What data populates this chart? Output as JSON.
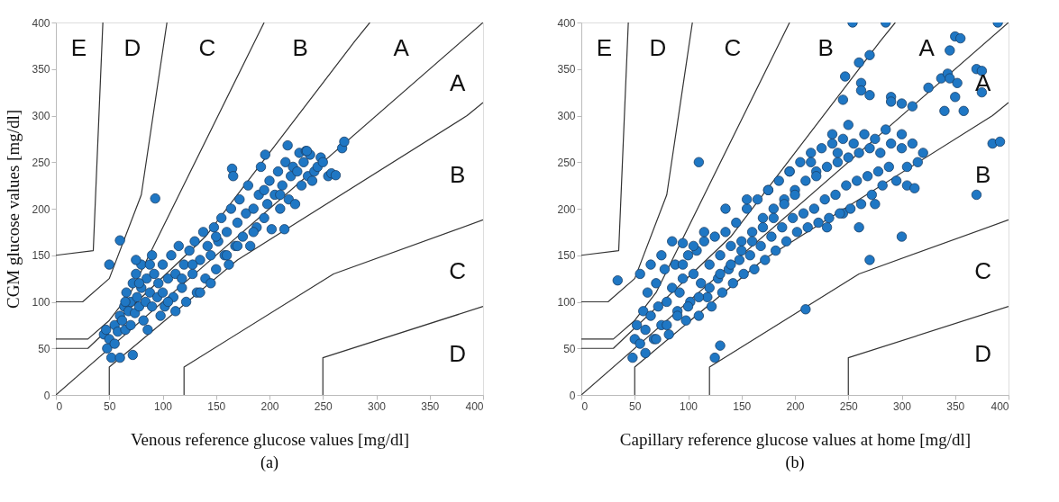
{
  "chart_data": [
    {
      "type": "scatter",
      "xlabel": "Venous reference glucose values [mg/dl]",
      "ylabel": "CGM glucose values [mg/dl]",
      "xlim": [
        0,
        400
      ],
      "ylim": [
        0,
        400
      ],
      "xticks": [
        0,
        50,
        100,
        150,
        200,
        250,
        300,
        350,
        400
      ],
      "yticks": [
        0,
        50,
        100,
        150,
        200,
        250,
        300,
        350,
        400
      ],
      "grid": false,
      "annotations": [
        "E",
        "D",
        "C",
        "B",
        "A",
        "A",
        "B",
        "C",
        "D",
        "(a)"
      ],
      "series": [
        {
          "type": "line",
          "color": "#333333",
          "x": [
            0,
            400
          ],
          "values": [
            0,
            400
          ]
        },
        {
          "type": "line",
          "color": "#333333",
          "x": [
            0,
            30,
            140,
            280,
            294
          ],
          "values": [
            50,
            50,
            170,
            380,
            400
          ]
        },
        {
          "type": "line",
          "color": "#333333",
          "x": [
            50,
            50,
            170,
            385,
            400
          ],
          "values": [
            0,
            30,
            145,
            300,
            314
          ]
        },
        {
          "type": "line",
          "color": "#333333",
          "x": [
            0,
            30,
            50,
            70,
            195
          ],
          "values": [
            60,
            60,
            80,
            110,
            400
          ]
        },
        {
          "type": "line",
          "color": "#333333",
          "x": [
            120,
            120,
            260,
            400
          ],
          "values": [
            0,
            30,
            130,
            188
          ]
        },
        {
          "type": "line",
          "color": "#333333",
          "x": [
            0,
            25,
            50,
            80,
            104
          ],
          "values": [
            100,
            100,
            125,
            215,
            400
          ]
        },
        {
          "type": "line",
          "color": "#333333",
          "x": [
            250,
            250,
            400
          ],
          "values": [
            0,
            40,
            95
          ]
        },
        {
          "type": "line",
          "color": "#333333",
          "x": [
            0,
            35,
            44
          ],
          "values": [
            150,
            155,
            400
          ]
        },
        {
          "color": "#1f77c4",
          "marker": "circle",
          "x": [
            45,
            47,
            48,
            50,
            52,
            55,
            58,
            60,
            60,
            62,
            64,
            65,
            66,
            68,
            70,
            70,
            72,
            72,
            74,
            75,
            76,
            78,
            80,
            80,
            82,
            84,
            85,
            86,
            88,
            90,
            90,
            92,
            93,
            95,
            96,
            98,
            100,
            100,
            102,
            105,
            108,
            110,
            112,
            115,
            118,
            120,
            122,
            125,
            128,
            130,
            132,
            135,
            138,
            140,
            142,
            145,
            148,
            150,
            152,
            155,
            158,
            160,
            162,
            164,
            165,
            166,
            168,
            170,
            172,
            175,
            178,
            180,
            182,
            185,
            188,
            190,
            192,
            195,
            196,
            198,
            200,
            202,
            205,
            208,
            210,
            212,
            214,
            215,
            217,
            218,
            220,
            222,
            224,
            226,
            228,
            230,
            232,
            234,
            236,
            238,
            240,
            242,
            245,
            248,
            250,
            255,
            258,
            262,
            268,
            270,
            50,
            60,
            75,
            150,
            235,
            105,
            112,
            135,
            160,
            185,
            55,
            65,
            78,
            88,
            118,
            128,
            145,
            170,
            195,
            210
          ],
          "values": [
            65,
            70,
            50,
            60,
            40,
            75,
            68,
            40,
            85,
            80,
            95,
            70,
            110,
            90,
            100,
            75,
            43,
            120,
            88,
            130,
            105,
            95,
            140,
            115,
            80,
            100,
            125,
            70,
            110,
            95,
            150,
            130,
            211,
            105,
            120,
            85,
            110,
            140,
            95,
            125,
            150,
            105,
            130,
            160,
            115,
            140,
            100,
            155,
            130,
            165,
            110,
            145,
            175,
            125,
            160,
            150,
            180,
            135,
            165,
            190,
            150,
            175,
            140,
            200,
            243,
            235,
            160,
            185,
            210,
            170,
            195,
            225,
            160,
            200,
            180,
            215,
            245,
            190,
            258,
            205,
            230,
            178,
            215,
            240,
            200,
            225,
            178,
            250,
            268,
            210,
            235,
            245,
            205,
            240,
            260,
            225,
            250,
            262,
            235,
            258,
            230,
            240,
            245,
            255,
            250,
            235,
            238,
            236,
            265,
            272,
            140,
            166,
            145,
            170,
            262,
            100,
            90,
            110,
            150,
            175,
            55,
            100,
            120,
            140,
            125,
            140,
            120,
            160,
            220,
            215
          ]
        }
      ]
    },
    {
      "type": "scatter",
      "xlabel": "Capillary reference glucose values at home [mg/dl]",
      "xlim": [
        0,
        400
      ],
      "ylim": [
        0,
        400
      ],
      "xticks": [
        0,
        50,
        100,
        150,
        200,
        250,
        300,
        350,
        400
      ],
      "yticks": [
        0,
        50,
        100,
        150,
        200,
        250,
        300,
        350,
        400
      ],
      "grid": false,
      "annotations": [
        "E",
        "D",
        "C",
        "B",
        "A",
        "A",
        "B",
        "C",
        "D",
        "(b)"
      ],
      "series": [
        {
          "type": "line",
          "color": "#333333",
          "x": [
            0,
            400
          ],
          "values": [
            0,
            400
          ]
        },
        {
          "type": "line",
          "color": "#333333",
          "x": [
            0,
            30,
            140,
            280,
            294
          ],
          "values": [
            50,
            50,
            170,
            380,
            400
          ]
        },
        {
          "type": "line",
          "color": "#333333",
          "x": [
            50,
            50,
            170,
            385,
            400
          ],
          "values": [
            0,
            30,
            145,
            300,
            314
          ]
        },
        {
          "type": "line",
          "color": "#333333",
          "x": [
            0,
            30,
            50,
            70,
            195
          ],
          "values": [
            60,
            60,
            80,
            110,
            400
          ]
        },
        {
          "type": "line",
          "color": "#333333",
          "x": [
            120,
            120,
            260,
            400
          ],
          "values": [
            0,
            30,
            130,
            188
          ]
        },
        {
          "type": "line",
          "color": "#333333",
          "x": [
            0,
            25,
            50,
            80,
            104
          ],
          "values": [
            100,
            100,
            125,
            215,
            400
          ]
        },
        {
          "type": "line",
          "color": "#333333",
          "x": [
            250,
            250,
            400
          ],
          "values": [
            0,
            40,
            95
          ]
        },
        {
          "type": "line",
          "color": "#333333",
          "x": [
            0,
            35,
            44
          ],
          "values": [
            150,
            155,
            400
          ]
        },
        {
          "color": "#1f77c4",
          "marker": "circle",
          "x": [
            34,
            110,
            254,
            285,
            390,
            350,
            355,
            345,
            260,
            270,
            247,
            262,
            245,
            262,
            270,
            290,
            290,
            300,
            310,
            325,
            337,
            343,
            345,
            350,
            358,
            370,
            375,
            352,
            375,
            385,
            392,
            370,
            340,
            300,
            210,
            245,
            260,
            275,
            270,
            230,
            300,
            305,
            312,
            130,
            125,
            95,
            48,
            50,
            52,
            55,
            58,
            60,
            62,
            65,
            68,
            70,
            72,
            75,
            78,
            80,
            82,
            85,
            88,
            90,
            92,
            95,
            98,
            100,
            102,
            105,
            108,
            110,
            112,
            115,
            118,
            120,
            122,
            125,
            128,
            130,
            132,
            135,
            138,
            140,
            142,
            145,
            148,
            150,
            152,
            155,
            158,
            160,
            162,
            165,
            168,
            170,
            172,
            175,
            178,
            180,
            182,
            185,
            188,
            190,
            192,
            195,
            198,
            200,
            202,
            205,
            208,
            210,
            212,
            215,
            218,
            220,
            222,
            225,
            228,
            230,
            232,
            235,
            238,
            240,
            242,
            245,
            248,
            250,
            252,
            255,
            258,
            260,
            262,
            265,
            268,
            270,
            272,
            275,
            278,
            280,
            282,
            285,
            288,
            290,
            295,
            300,
            305,
            310,
            315,
            320,
            60,
            70,
            80,
            90,
            100,
            110,
            120,
            130,
            140,
            150,
            160,
            170,
            180,
            190,
            200,
            220,
            240,
            55,
            65,
            75,
            85,
            95,
            105,
            115,
            135,
            155,
            175,
            195,
            215,
            235,
            250
          ],
          "values": [
            123,
            250,
            400,
            400,
            400,
            385,
            383,
            370,
            357,
            365,
            342,
            335,
            317,
            327,
            322,
            320,
            315,
            313,
            310,
            330,
            340,
            345,
            340,
            320,
            305,
            350,
            348,
            335,
            325,
            270,
            272,
            215,
            305,
            280,
            92,
            195,
            180,
            205,
            145,
            180,
            170,
            225,
            222,
            53,
            40,
            163,
            40,
            60,
            75,
            55,
            90,
            70,
            110,
            85,
            60,
            120,
            95,
            75,
            135,
            100,
            65,
            115,
            140,
            90,
            110,
            125,
            80,
            150,
            100,
            130,
            155,
            85,
            120,
            165,
            105,
            140,
            95,
            170,
            125,
            150,
            110,
            175,
            135,
            160,
            120,
            185,
            145,
            165,
            130,
            200,
            150,
            175,
            135,
            210,
            160,
            190,
            145,
            220,
            170,
            200,
            155,
            230,
            180,
            210,
            165,
            240,
            190,
            220,
            175,
            250,
            195,
            230,
            180,
            260,
            200,
            240,
            185,
            265,
            210,
            245,
            190,
            270,
            215,
            250,
            195,
            275,
            225,
            255,
            200,
            270,
            230,
            260,
            205,
            280,
            235,
            265,
            215,
            275,
            240,
            260,
            225,
            285,
            245,
            270,
            230,
            265,
            245,
            270,
            250,
            260,
            45,
            60,
            75,
            85,
            95,
            105,
            115,
            130,
            140,
            155,
            165,
            180,
            190,
            205,
            215,
            235,
            260,
            130,
            140,
            150,
            165,
            140,
            160,
            175,
            200,
            210,
            220,
            240,
            250,
            280,
            290
          ]
        }
      ]
    }
  ]
}
